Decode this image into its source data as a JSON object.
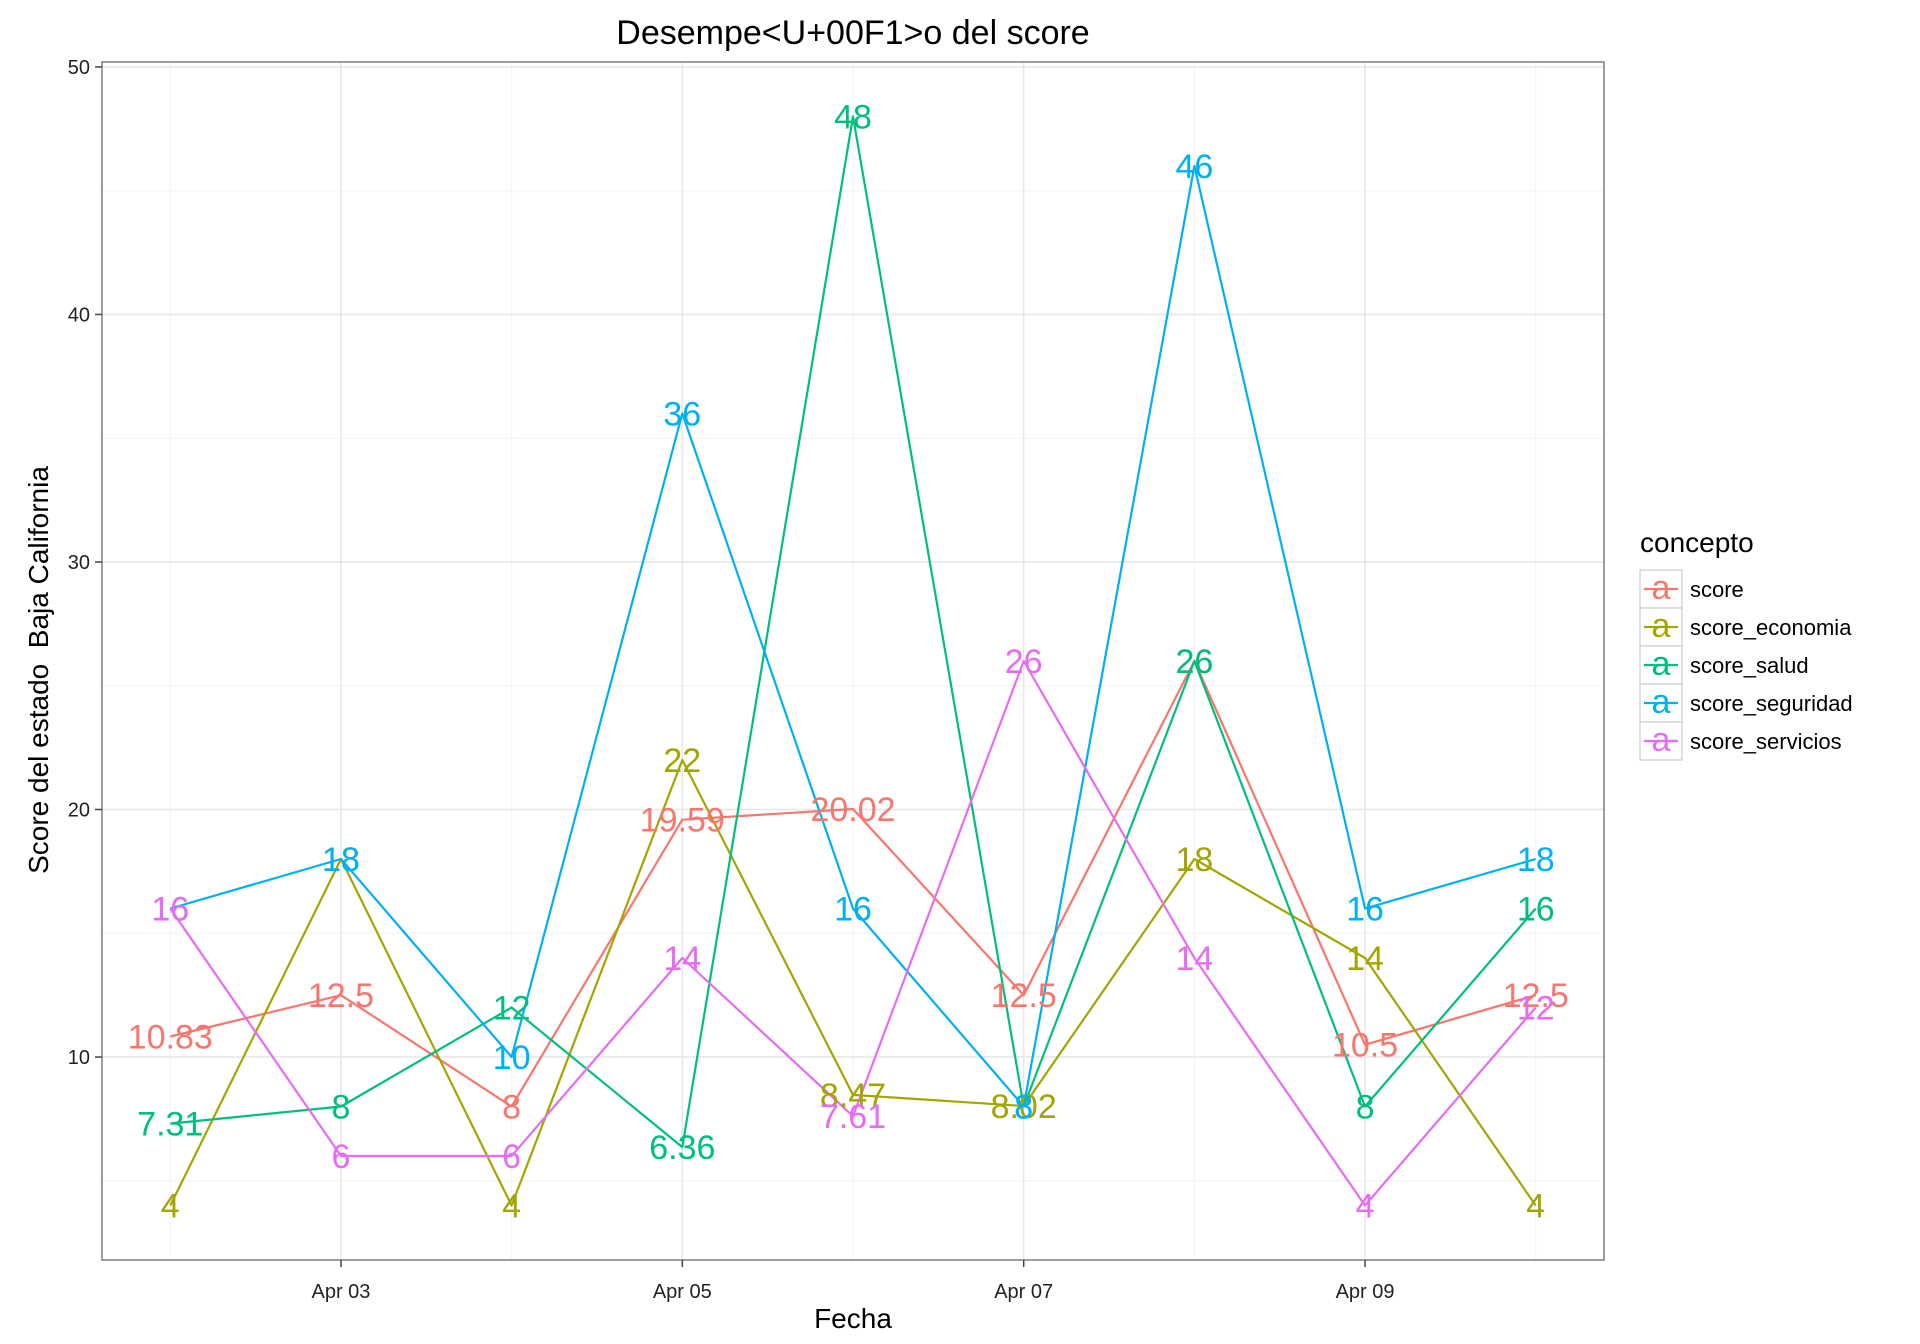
{
  "chart_data": {
    "type": "line",
    "title": "Desempe<U+00F1>o del score",
    "xlabel": "Fecha",
    "ylabel": "Score del estado  Baja California",
    "x": [
      "2016-04-02",
      "2016-04-03",
      "2016-04-04",
      "2016-04-05",
      "2016-04-06",
      "2016-04-07",
      "2016-04-08",
      "2016-04-09",
      "2016-04-10"
    ],
    "x_ticks": [
      {
        "date": "2016-04-03",
        "label": "Apr 03"
      },
      {
        "date": "2016-04-05",
        "label": "Apr 05"
      },
      {
        "date": "2016-04-07",
        "label": "Apr 07"
      },
      {
        "date": "2016-04-09",
        "label": "Apr 09"
      }
    ],
    "xlim": [
      "2016-04-01T14:24",
      "2016-04-10T09:36"
    ],
    "ylim": [
      1.8,
      50.2
    ],
    "y_ticks": [
      10,
      20,
      30,
      40,
      50
    ],
    "grid": true,
    "legend": {
      "title": "concepto",
      "position": "right",
      "key_glyph": "a"
    },
    "series": [
      {
        "name": "score",
        "color": "#F8766D",
        "values": [
          10.83,
          12.5,
          8,
          19.59,
          20.02,
          12.5,
          26,
          10.5,
          12.5
        ],
        "labels": [
          "10.83",
          "12.5",
          "8",
          "19.59",
          "20.02",
          "12.5",
          "26",
          "10.5",
          "12.5"
        ]
      },
      {
        "name": "score_economia",
        "color": "#A3A500",
        "values": [
          4,
          18,
          4,
          22,
          8.47,
          8.02,
          18,
          14,
          4
        ],
        "labels": [
          "4",
          "18",
          "4",
          "22",
          "8.47",
          "8.02",
          "18",
          "14",
          "4"
        ]
      },
      {
        "name": "score_salud",
        "color": "#00BF7D",
        "values": [
          7.31,
          8,
          12,
          6.36,
          48,
          8,
          26,
          8,
          16
        ],
        "labels": [
          "7.31",
          "8",
          "12",
          "6.36",
          "48",
          "8",
          "26",
          "8",
          "16"
        ]
      },
      {
        "name": "score_seguridad",
        "color": "#00B0F6",
        "values": [
          16,
          18,
          10,
          36,
          16,
          8,
          46,
          16,
          18
        ],
        "labels": [
          "16",
          "18",
          "10",
          "36",
          "16",
          "8",
          "46",
          "16",
          "18"
        ]
      },
      {
        "name": "score_servicios",
        "color": "#E76BF3",
        "values": [
          16,
          6,
          6,
          14,
          7.61,
          26,
          14,
          4,
          12
        ],
        "labels": [
          "16",
          "6",
          "6",
          "14",
          "7.61",
          "26",
          "14",
          "4",
          "12"
        ]
      }
    ]
  }
}
